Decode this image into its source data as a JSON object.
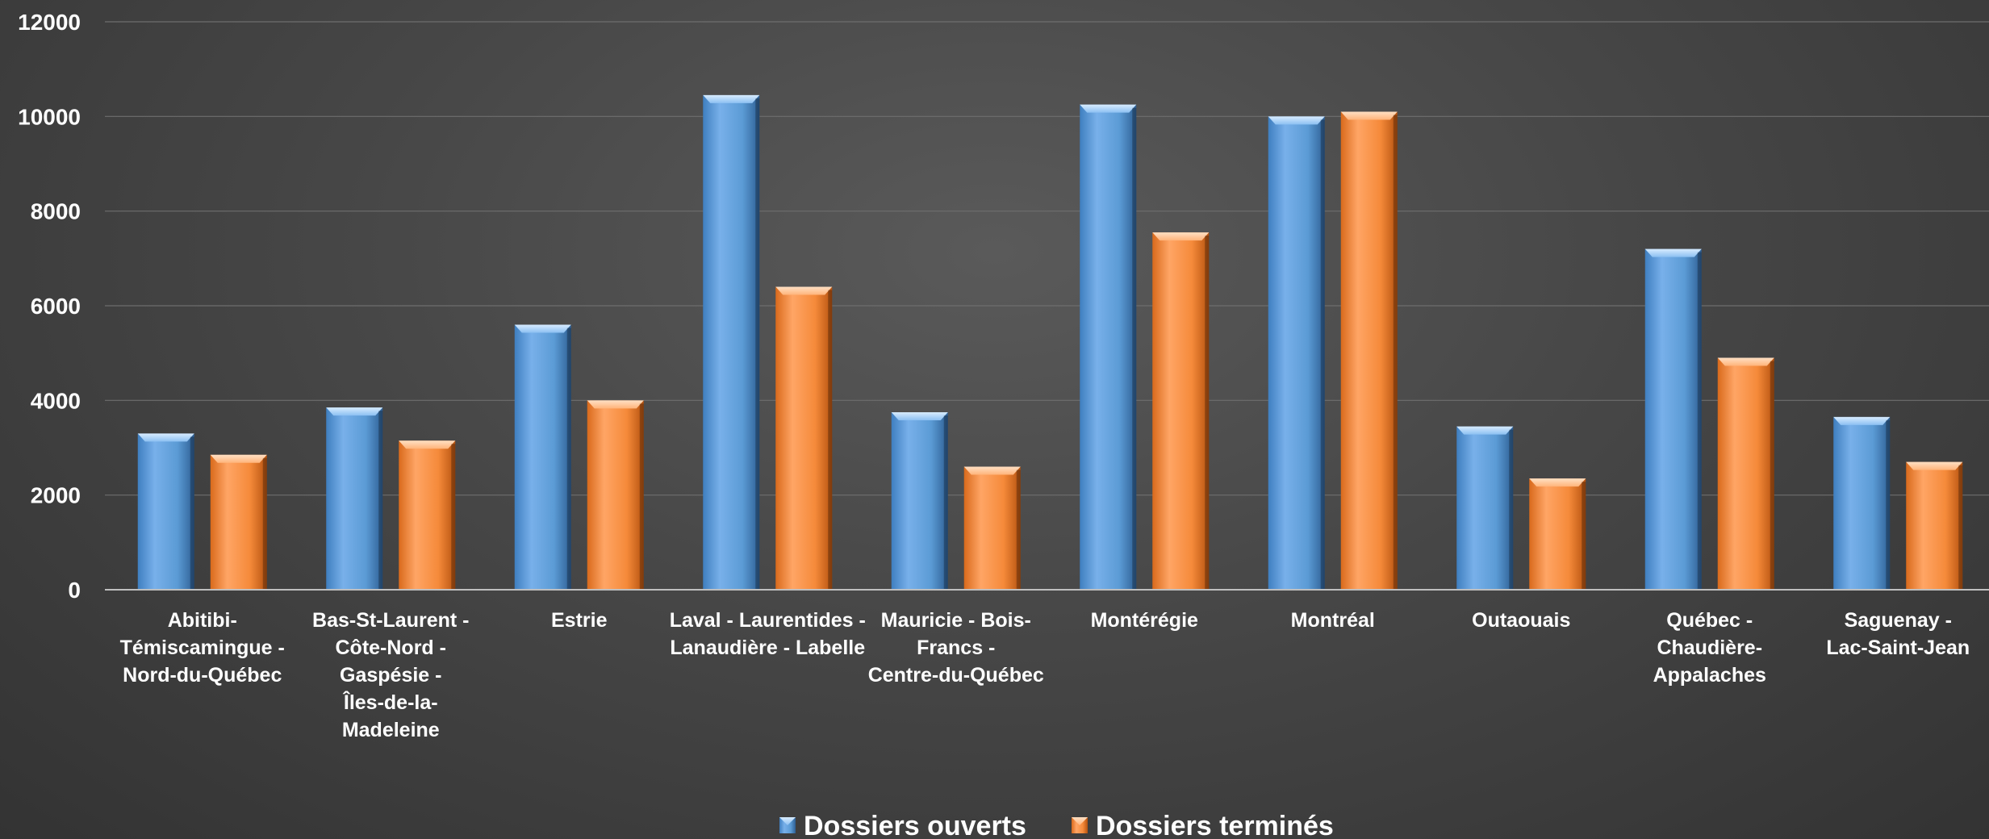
{
  "chart_data": {
    "type": "bar",
    "categories": [
      [
        "Abitibi-",
        "Témiscamingue -",
        "Nord-du-Québec"
      ],
      [
        "Bas-St-Laurent -",
        "Côte-Nord -",
        "Gaspésie -",
        "Îles-de-la-",
        "Madeleine"
      ],
      [
        "Estrie"
      ],
      [
        "Laval - Laurentides -",
        "Lanaudière - Labelle"
      ],
      [
        "Mauricie - Bois-",
        "Francs -",
        "Centre-du-Québec"
      ],
      [
        "Montérégie"
      ],
      [
        "Montréal"
      ],
      [
        "Outaouais"
      ],
      [
        "Québec -",
        "Chaudière-",
        "Appalaches"
      ],
      [
        "Saguenay -",
        "Lac-Saint-Jean"
      ]
    ],
    "series": [
      {
        "name": "Dossiers ouverts",
        "color": "#5b9bd5",
        "values": [
          3300,
          3850,
          5600,
          10450,
          3750,
          10250,
          10000,
          3450,
          7200,
          3650
        ]
      },
      {
        "name": "Dossiers terminés",
        "color": "#f58a3a",
        "values": [
          2850,
          3150,
          4000,
          6400,
          2600,
          7550,
          10100,
          2350,
          4900,
          2700
        ]
      }
    ],
    "yticks": [
      "0",
      "2000",
      "4000",
      "6000",
      "8000",
      "10000",
      "12000"
    ],
    "ylim": [
      0,
      12000
    ],
    "grid": true,
    "legend_position": "bottom-center"
  }
}
